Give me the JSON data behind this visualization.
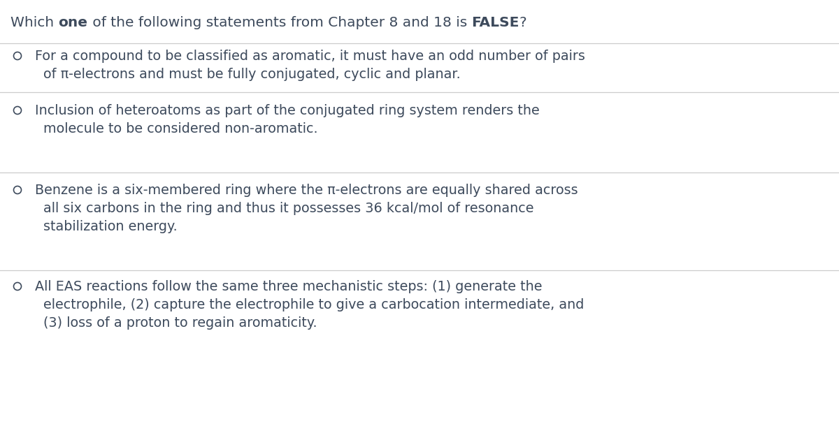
{
  "bg_color": "#ffffff",
  "text_color": "#3d4a5c",
  "line_color": "#cccccc",
  "circle_color": "#3d4a5c",
  "font_size_title": 14.5,
  "font_size_options": 13.8,
  "title_segments": [
    {
      "text": "Which ",
      "bold": false
    },
    {
      "text": "one",
      "bold": true
    },
    {
      "text": " of the following statements from Chapter 8 and 18 is ",
      "bold": false
    },
    {
      "text": "FALSE",
      "bold": true
    },
    {
      "text": "?",
      "bold": false
    }
  ],
  "options": [
    [
      "For a compound to be classified as aromatic, it must have an odd number of pairs",
      "of π-electrons and must be fully conjugated, cyclic and planar."
    ],
    [
      "Inclusion of heteroatoms as part of the conjugated ring system renders the",
      "molecule to be considered non-aromatic."
    ],
    [
      "Benzene is a six-membered ring where the π-electrons are equally shared across",
      "all six carbons in the ring and thus it possesses 36 kcal/mol of resonance",
      "stabilization energy."
    ],
    [
      "All EAS reactions follow the same three mechanistic steps: (1) generate the",
      "electrophile, (2) capture the electrophile to give a carbocation intermediate, and",
      "(3) loss of a proton to regain aromaticity."
    ]
  ],
  "fig_width": 12.0,
  "fig_height": 6.2,
  "dpi": 100
}
